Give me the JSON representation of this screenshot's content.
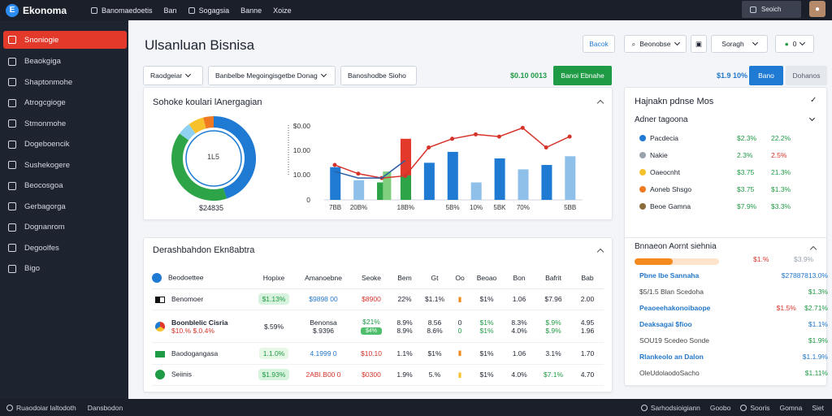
{
  "app": {
    "logo_text": "Ekonoma",
    "top_nav": [
      "Banomaedoetis",
      "Ban",
      "Sogagsia",
      "Banne",
      "Xoize"
    ],
    "search_label": "Seoich"
  },
  "sidebar": {
    "items": [
      {
        "label": "Snoniogie",
        "active": true
      },
      {
        "label": "Beaokgiga",
        "active": false
      },
      {
        "label": "Shaptonmohe",
        "active": false
      },
      {
        "label": "Atrogcgioge",
        "active": false
      },
      {
        "label": "Stmonmohe",
        "active": false
      },
      {
        "label": "Dogeboencik",
        "active": false
      },
      {
        "label": "Sushekogere",
        "active": false
      },
      {
        "label": "Beocosgoa",
        "active": false
      },
      {
        "label": "Gerbagorga",
        "active": false
      },
      {
        "label": "Dognanrom",
        "active": false
      },
      {
        "label": "Degoolfes",
        "active": false
      },
      {
        "label": "Bigo",
        "active": false
      }
    ]
  },
  "header": {
    "title": "Ulsanluan Bisnisa",
    "btn_save": "Bacok",
    "btn_search": "Beonobse",
    "btn_filter": "Soragh",
    "btn_status": "0"
  },
  "filters": {
    "f1": "Raodgeiar",
    "f2": "Banbelbe Megoingisgetbe Donag",
    "f3": "Banoshodbe Sioho",
    "green_value": "$0.10 0013",
    "green_button": "Banoi Ebnahe",
    "blue_value": "$1.9 10%",
    "blue_button": "Bano",
    "grey_button": "Dohanos"
  },
  "chart_card": {
    "title": "Sohoke koulari lAnergagian",
    "donut_center": "1L5",
    "donut_value": "$24835"
  },
  "chart_data": {
    "type": "bar",
    "title": "",
    "categories": [
      "7BB",
      "20B%",
      "",
      "18B%",
      "",
      "5B%",
      "10%",
      "5BK",
      "70%",
      "",
      "5BB"
    ],
    "y_ticks": [
      "0",
      "10.00",
      "10.00",
      "$0.00"
    ],
    "ylim": [
      0,
      35
    ],
    "series": [
      {
        "values": [
          15,
          9,
          8,
          28,
          17,
          22,
          8,
          19,
          14,
          16,
          20
        ]
      },
      {
        "values": [
          0,
          0,
          13,
          0,
          0,
          0,
          0,
          0,
          0,
          0,
          0
        ]
      },
      {
        "values": [
          0,
          0,
          0,
          25,
          0,
          0,
          0,
          0,
          0,
          0,
          0
        ]
      }
    ],
    "line": [
      16,
      12,
      10,
      11,
      24,
      28,
      30,
      29,
      33,
      24,
      29
    ],
    "line2": [
      13,
      10,
      10,
      18,
      0,
      0,
      0,
      0,
      0,
      0,
      0
    ],
    "donut": [
      {
        "value": 45,
        "color": "#1e7ad3"
      },
      {
        "value": 40,
        "color": "#2ea448"
      },
      {
        "value": 5,
        "color": "#8fd1f0"
      },
      {
        "value": 6,
        "color": "#f6c12a"
      },
      {
        "value": 4,
        "color": "#ef7a22"
      }
    ]
  },
  "table_card": {
    "title": "Derashbahdon Ekn8abtra",
    "headers": [
      "Beodoettee",
      "Hopixe",
      "Amanoebne",
      "Seoke",
      "Bem",
      "Gt",
      "Oo",
      "Beoao",
      "Bon",
      "Bafrit",
      "Bab"
    ],
    "rows": [
      {
        "name": "Benomoer",
        "c1": "$1.13%",
        "c2": "$9898 00",
        "c3": "$8900",
        "c4": "22%",
        "c5": "$1.1%",
        "c6": "",
        "c7": "$1%",
        "c8": "1.06",
        "c9": "$7.96",
        "c10": "2.00"
      },
      {
        "name": "Boonblelic Cisria",
        "sub": "$10.% $.0.4%",
        "c1": "$.59%",
        "c2": "Benonsa",
        "c2b": "$.9396",
        "c3": "$21%",
        "c3b": "$4%",
        "c4": "8.9%",
        "c4b": "8.9%",
        "c5": "8.56",
        "c5b": "8.6%",
        "c6": "0",
        "c6b": "0",
        "c7": "$1%",
        "c7b": "$1%",
        "c8": "8.3%",
        "c8b": "4.0%",
        "c9": "$.9%",
        "c9b": "$.9%",
        "c10": "4.95",
        "c10b": "1.96"
      },
      {
        "name": "Baodogangasa",
        "c1": "1.1.0%",
        "c2": "4.1999 0",
        "c3": "$10.10",
        "c4": "1.1%",
        "c5": "$1%",
        "c6": "",
        "c7": "$1%",
        "c8": "1.06",
        "c9": "3.1%",
        "c10": "1.70"
      },
      {
        "name": "Seiinis",
        "c1": "$1.93%",
        "c2": "2ABI.B00 0",
        "c3": "$0300",
        "c4": "1.9%",
        "c5": "5.%",
        "c6": "",
        "c7": "$1%",
        "c8": "4.0%",
        "c9": "$7.1%",
        "c10": "4.70"
      }
    ]
  },
  "right_card_1": {
    "title": "Hajnakn pdnse Mos",
    "subtitle": "Adner tagoona",
    "items": [
      {
        "name": "Pacdecia",
        "v1": "$2.3%",
        "v2": "22.2%",
        "v2color": "green"
      },
      {
        "name": "Nakie",
        "v1": "2.3%",
        "v2": "2.5%",
        "v2color": "red"
      },
      {
        "name": "Oaeocnht",
        "v1": "$3.75",
        "v2": "21.3%",
        "v2color": "green"
      },
      {
        "name": "Aoneb Shsgo",
        "v1": "$3.75",
        "v2": "$1.3%",
        "v2color": "green"
      },
      {
        "name": "Beoe Gamna",
        "v1": "$7.9%",
        "v2": "$3.3%",
        "v2color": "green"
      }
    ]
  },
  "right_card_2": {
    "title": "Bnnaeon Aornt siehnia",
    "progress_pct": "$1.%",
    "progress_val": "$3.9%",
    "progress": 0.45,
    "items": [
      {
        "name": "Pbne lbe Sannaha",
        "value": "$27887813.0%",
        "style": "blue"
      },
      {
        "name": "$5/1.5 Blan Scedoha",
        "value": "$1.3%",
        "style": "grey"
      },
      {
        "name": "Peaoeehakonoibaope",
        "value": "$1.5%",
        "value2": "$2.71%",
        "style": "blue"
      },
      {
        "name": "Deaksagai $fioo",
        "value": "$1.1%",
        "style": "blue"
      },
      {
        "name": "SOU19 Scedeo Sonde",
        "value": "$1.9%",
        "style": "grey"
      },
      {
        "name": "Rlankeolo an Dalon",
        "value": "$1.1.9%",
        "style": "blue"
      },
      {
        "name": "OleUdolaodoSacho",
        "value": "$1.11%",
        "style": "grey"
      }
    ]
  },
  "bottom": {
    "left1": "Ruaodoiar laltodoth",
    "left2": "Dansbodon",
    "right1": "Sarhodsioigiann",
    "right2": "Goobo",
    "right3": "Sooris",
    "right4": "Gomna",
    "right5": "Siet"
  }
}
